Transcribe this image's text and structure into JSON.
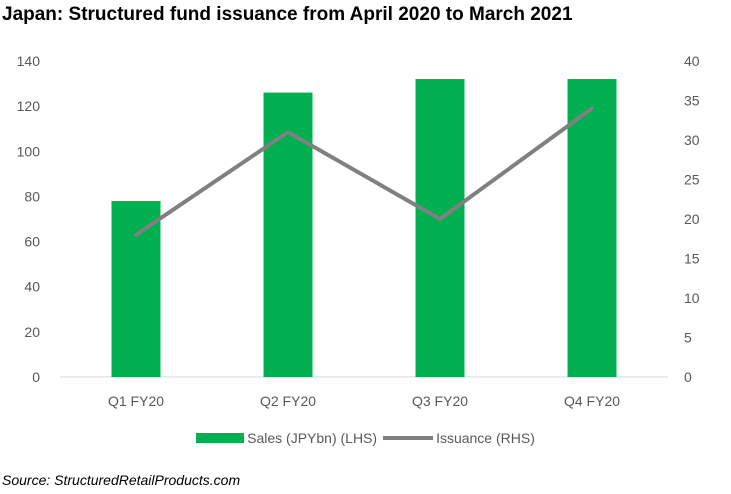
{
  "title": "Japan: Structured fund issuance from April 2020 to March 2021",
  "source": "Source: StructuredRetailProducts.com",
  "colors": {
    "bars": "#00b050",
    "line": "#808080",
    "axis": "#d9d9d9",
    "text": "#595959"
  },
  "chart_data": {
    "type": "bar",
    "title": "Japan: Structured fund issuance from April 2020 to March 2021",
    "categories": [
      "Q1 FY20",
      "Q2 FY20",
      "Q3 FY20",
      "Q4 FY20"
    ],
    "series": [
      {
        "name": "Sales (JPYbn) (LHS)",
        "type": "bar",
        "axis": "left",
        "values": [
          78,
          126,
          132,
          132
        ]
      },
      {
        "name": "Issuance (RHS)",
        "type": "line",
        "axis": "right",
        "values": [
          18,
          31,
          20,
          34
        ]
      }
    ],
    "ylim_left": [
      0,
      140
    ],
    "yticks_left": [
      "0",
      "20",
      "40",
      "60",
      "80",
      "100",
      "120",
      "140"
    ],
    "ylim_right": [
      0,
      40
    ],
    "yticks_right": [
      "0",
      "5",
      "10",
      "15",
      "20",
      "25",
      "30",
      "35",
      "40"
    ],
    "grid": false,
    "legend_position": "bottom"
  }
}
